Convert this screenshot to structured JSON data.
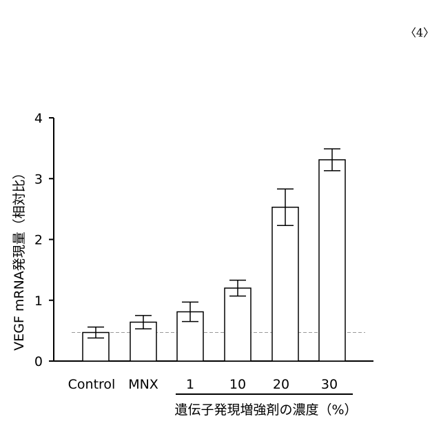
{
  "page_number": "〈4〉",
  "chart_data": {
    "type": "bar",
    "title": "",
    "ylabel": "VEGF mRNA発現量（相対比）",
    "xlabel": "遺伝子発現増強剤の濃度（%）",
    "categories": [
      "Control",
      "MNX",
      "1",
      "10",
      "20",
      "30"
    ],
    "values": [
      0.47,
      0.64,
      0.81,
      1.2,
      2.53,
      3.31
    ],
    "errors": [
      0.09,
      0.11,
      0.16,
      0.13,
      0.3,
      0.18
    ],
    "ylim": [
      0,
      4
    ],
    "yticks": [
      "0",
      "1",
      "2",
      "3",
      "4"
    ],
    "reference_line": 0.47,
    "concentration_group": [
      "1",
      "10",
      "20",
      "30"
    ],
    "grid": false,
    "colors": {
      "bar_fill": "#ffffff",
      "bar_stroke": "#000000",
      "reference_line": "#999999"
    }
  }
}
